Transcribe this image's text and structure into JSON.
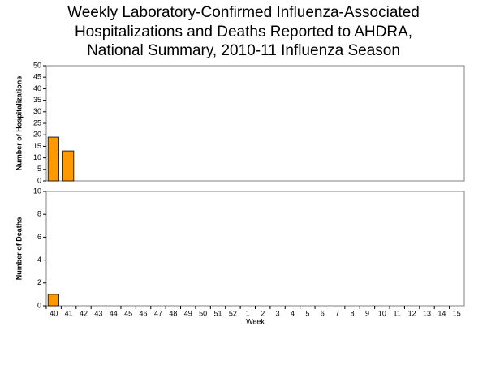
{
  "chart_data": [
    {
      "type": "bar",
      "title": [
        "Weekly Laboratory-Confirmed Influenza-Associated",
        "Hospitalizations and Deaths Reported to AHDRA,",
        "National Summary, 2010-11 Influenza Season"
      ],
      "y_label": "Number of Hospitalizations",
      "values": [
        19,
        13,
        null,
        null,
        null,
        null,
        null,
        null,
        null,
        null,
        null,
        null,
        null,
        null,
        null,
        null,
        null,
        null,
        null,
        null,
        null,
        null,
        null,
        null,
        null,
        null,
        null,
        null
      ],
      "color": "#ff9900",
      "ylim": [
        0,
        50
      ],
      "yticks": [
        0,
        5,
        10,
        15,
        20,
        25,
        30,
        35,
        40,
        45,
        50
      ]
    },
    {
      "type": "bar",
      "x_label": "Week",
      "y_label": "Number of Deaths",
      "categories": [
        "40",
        "41",
        "42",
        "43",
        "44",
        "45",
        "46",
        "47",
        "48",
        "49",
        "50",
        "51",
        "52",
        "1",
        "2",
        "3",
        "4",
        "5",
        "6",
        "7",
        "8",
        "9",
        "10",
        "11",
        "12",
        "13",
        "14",
        "15"
      ],
      "values": [
        1,
        null,
        null,
        null,
        null,
        null,
        null,
        null,
        null,
        null,
        null,
        null,
        null,
        null,
        null,
        null,
        null,
        null,
        null,
        null,
        null,
        null,
        null,
        null,
        null,
        null,
        null,
        null
      ],
      "color": "#ff9900",
      "ylim": [
        0,
        10
      ],
      "yticks": [
        0,
        2,
        4,
        6,
        8,
        10
      ]
    }
  ]
}
